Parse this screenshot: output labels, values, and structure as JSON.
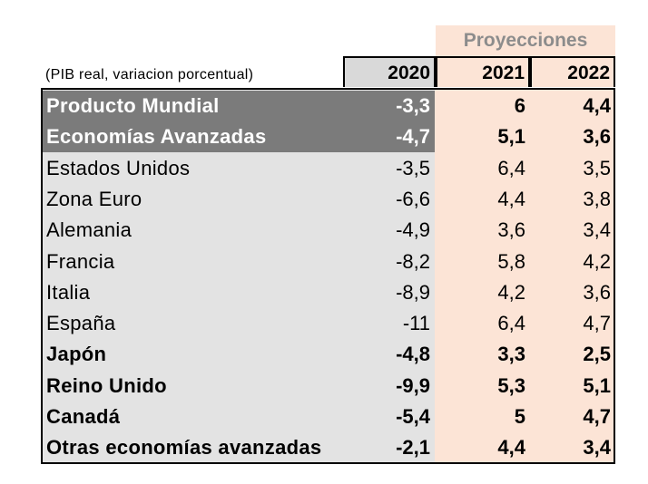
{
  "header": {
    "projections_label": "Proyecciones",
    "unit_label": "(PIB real, variacion porcentual)",
    "years": [
      "2020",
      "2021",
      "2022"
    ]
  },
  "rows": [
    {
      "name": "Producto Mundial",
      "v2020": "-3,3",
      "v2021": "6",
      "v2022": "4,4",
      "bold": true,
      "dark": true
    },
    {
      "name": "Economías Avanzadas",
      "v2020": "-4,7",
      "v2021": "5,1",
      "v2022": "3,6",
      "bold": true,
      "dark": true
    },
    {
      "name": "Estados Unidos",
      "v2020": "-3,5",
      "v2021": "6,4",
      "v2022": "3,5",
      "bold": false,
      "dark": false
    },
    {
      "name": "Zona Euro",
      "v2020": "-6,6",
      "v2021": "4,4",
      "v2022": "3,8",
      "bold": false,
      "dark": false
    },
    {
      "name": "Alemania",
      "v2020": "-4,9",
      "v2021": "3,6",
      "v2022": "3,4",
      "bold": false,
      "dark": false
    },
    {
      "name": "Francia",
      "v2020": "-8,2",
      "v2021": "5,8",
      "v2022": "4,2",
      "bold": false,
      "dark": false
    },
    {
      "name": "Italia",
      "v2020": "-8,9",
      "v2021": "4,2",
      "v2022": "3,6",
      "bold": false,
      "dark": false
    },
    {
      "name": "España",
      "v2020": "-11",
      "v2021": "6,4",
      "v2022": "4,7",
      "bold": false,
      "dark": false
    },
    {
      "name": "Japón",
      "v2020": "-4,8",
      "v2021": "3,3",
      "v2022": "2,5",
      "bold": true,
      "dark": false
    },
    {
      "name": "Reino Unido",
      "v2020": "-9,9",
      "v2021": "5,3",
      "v2022": "5,1",
      "bold": true,
      "dark": false
    },
    {
      "name": "Canadá",
      "v2020": "-5,4",
      "v2021": "5",
      "v2022": "4,7",
      "bold": true,
      "dark": false
    },
    {
      "name": "Otras economías avanzadas",
      "v2020": "-2,1",
      "v2021": "4,4",
      "v2022": "3,4",
      "bold": true,
      "dark": false
    }
  ],
  "colors": {
    "projection_bg": "#fce4d6",
    "history_bg": "#e3e3e3",
    "highlight_bg": "#7b7b7b",
    "projection_text": "#8c8c8c"
  }
}
